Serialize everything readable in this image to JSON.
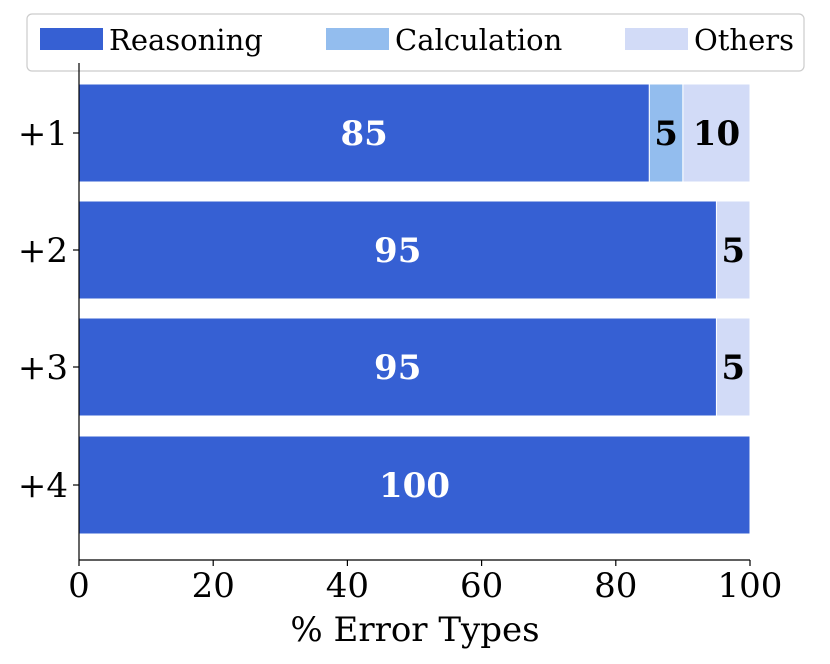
{
  "chart_data": {
    "type": "bar",
    "orientation": "horizontal",
    "stacked": true,
    "categories": [
      "+1",
      "+2",
      "+3",
      "+4"
    ],
    "series": [
      {
        "name": "Reasoning",
        "values": [
          85,
          95,
          95,
          100
        ],
        "color": "#3660d3",
        "label_color": "#ffffff"
      },
      {
        "name": "Calculation",
        "values": [
          5,
          0,
          0,
          0
        ],
        "color": "#93bdee",
        "label_color": "#000000"
      },
      {
        "name": "Others",
        "values": [
          10,
          5,
          5,
          0
        ],
        "color": "#d2dbf7",
        "label_color": "#000000"
      }
    ],
    "xlabel": "% Error Types",
    "ylabel": "",
    "xlim": [
      0,
      100
    ],
    "xticks": [
      0,
      20,
      40,
      60,
      80,
      100
    ],
    "grid": false,
    "legend": "top"
  }
}
